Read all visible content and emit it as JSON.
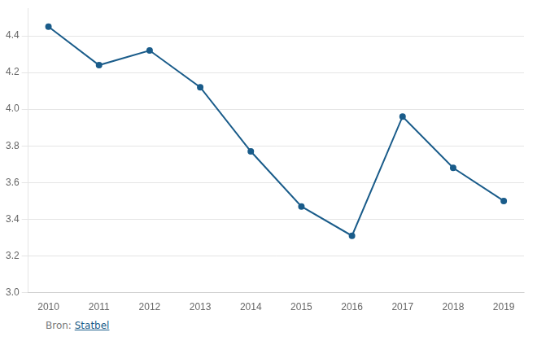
{
  "chart_data": {
    "type": "line",
    "x": [
      2010,
      2011,
      2012,
      2013,
      2014,
      2015,
      2016,
      2017,
      2018,
      2019
    ],
    "values": [
      4.45,
      4.24,
      4.32,
      4.12,
      3.77,
      3.47,
      3.31,
      3.96,
      3.68,
      3.5
    ],
    "color": "#1a5c8a",
    "marker": "circle",
    "xlim": [
      2009.6,
      2019.4
    ],
    "xticks": [
      2010,
      2011,
      2012,
      2013,
      2014,
      2015,
      2016,
      2017,
      2018,
      2019
    ],
    "ylim": [
      3.0,
      4.55
    ],
    "yticks": [
      {
        "value": 3.0,
        "label": "3.0"
      },
      3.2,
      3.4,
      3.6,
      3.8,
      {
        "value": 4.0,
        "label": "4.0"
      },
      4.2,
      4.4
    ],
    "grid": "y",
    "annotations": [
      "Bron: ",
      "Statbel"
    ]
  }
}
